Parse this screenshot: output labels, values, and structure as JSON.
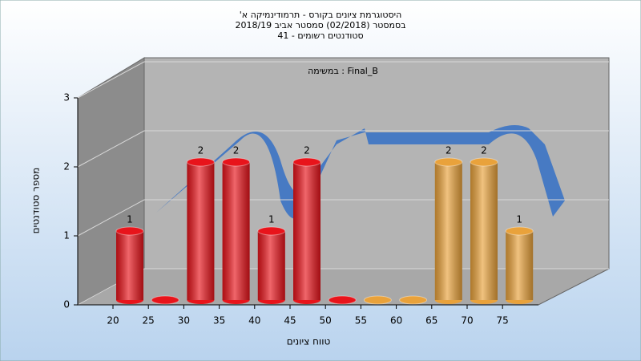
{
  "chart_data": {
    "type": "bar",
    "title": "היסטוגרמת ציונים בקורס - תרמודינמיקה א'",
    "subtitle": "בסמסטר  (02/2018)  סמסטר אביב 2018/19",
    "subtitle2": "סטודנטים רשומים - 41",
    "annotation": "במשימה : Final_B",
    "x_label": "טווח ציונים",
    "y_label": "מספר סטודנטים",
    "categories": [
      "20",
      "25",
      "30",
      "35",
      "40",
      "45",
      "50",
      "55",
      "60",
      "65",
      "70",
      "75"
    ],
    "values": [
      1,
      0,
      2,
      2,
      1,
      2,
      0,
      0,
      0,
      2,
      2,
      1
    ],
    "colors": [
      "#e8141b",
      "#e8141b",
      "#e8141b",
      "#e8141b",
      "#e8141b",
      "#e8141b",
      "#e8141b",
      "#e9a23b",
      "#e9a23b",
      "#e9a23b",
      "#e9a23b",
      "#e9a23b"
    ],
    "ylim": [
      0,
      3
    ],
    "yticks": [
      0,
      1,
      2,
      3
    ],
    "grid": true
  }
}
